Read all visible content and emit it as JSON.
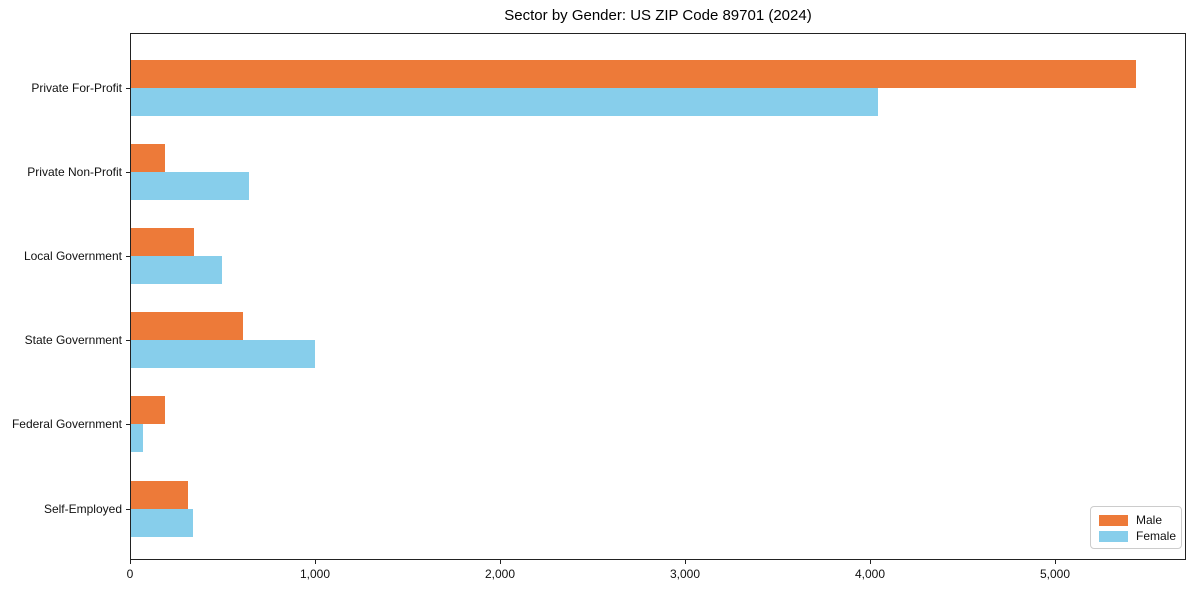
{
  "title": "Sector by Gender: US ZIP Code 89701 (2024)",
  "chart_data": {
    "type": "bar",
    "orientation": "horizontal",
    "title": "Sector by Gender: US ZIP Code 89701 (2024)",
    "categories": [
      "Private For-Profit",
      "Private Non-Profit",
      "Local Government",
      "State Government",
      "Federal Government",
      "Self-Employed"
    ],
    "series": [
      {
        "name": "Male",
        "color": "#ED7A39",
        "values": [
          5430,
          185,
          340,
          605,
          185,
          310
        ]
      },
      {
        "name": "Female",
        "color": "#87CEEB",
        "values": [
          4040,
          640,
          490,
          995,
          65,
          335
        ]
      }
    ],
    "xlabel": "",
    "ylabel": "",
    "xlim": [
      0,
      5708
    ],
    "xticks": [
      0,
      1000,
      2000,
      3000,
      4000,
      5000
    ],
    "xtick_labels": [
      "0",
      "1,000",
      "2,000",
      "3,000",
      "4,000",
      "5,000"
    ],
    "grid": false,
    "legend_position": "lower right"
  }
}
